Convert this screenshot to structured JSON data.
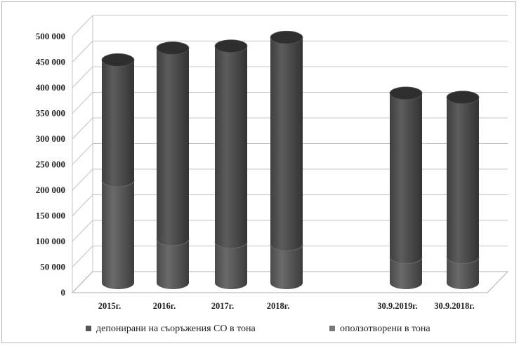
{
  "chart_data": {
    "type": "bar",
    "stacked": true,
    "three_d": true,
    "categories": [
      "2015г.",
      "2016г.",
      "2017г.",
      "2018г.",
      "30.9.2019г.",
      "30.9.2018г."
    ],
    "series": [
      {
        "name": "депонирани на съоръжения СО в тона",
        "values": [
          200000,
          85000,
          80000,
          75000,
          50000,
          50000
        ],
        "color": "#595959"
      },
      {
        "name": "оползотворени в тона",
        "values": [
          235000,
          373000,
          382000,
          404000,
          320000,
          312000
        ],
        "color": "#4a4a4a"
      }
    ],
    "y_ticks": [
      "0",
      "50 000",
      "100 000",
      "150 000",
      "200 000",
      "250 000",
      "300 000",
      "350 000",
      "400 000",
      "450 000",
      "500 000"
    ],
    "ylim": [
      0,
      500000
    ],
    "grid": true,
    "legend_position": "bottom"
  }
}
